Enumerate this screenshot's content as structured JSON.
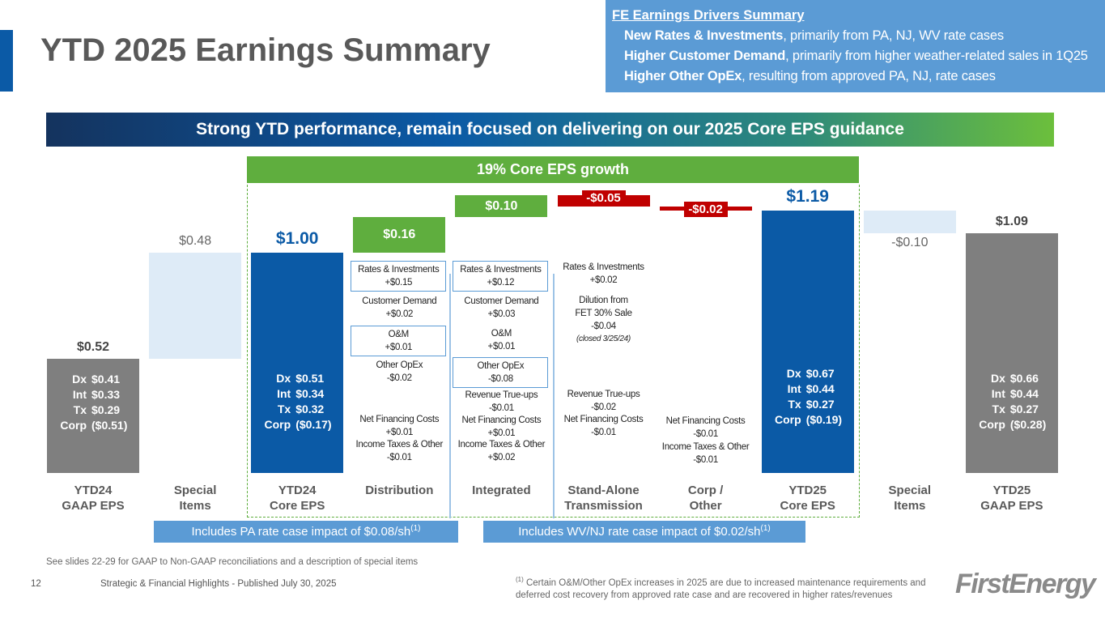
{
  "slide": {
    "title": "YTD 2025 Earnings Summary",
    "banner": "Strong YTD performance, remain focused on delivering on our 2025 Core EPS guidance",
    "growth_label": "19% Core EPS growth",
    "drivers_summary": {
      "title": "FE Earnings Drivers Summary",
      "items": [
        {
          "bold": "New Rates & Investments",
          "text": ", primarily from PA, NJ, WV rate cases"
        },
        {
          "bold": "Higher Customer Demand",
          "text": ", primarily from higher weather-related sales in 1Q25"
        },
        {
          "bold": "Higher Other OpEx",
          "text": ", resulting from approved PA, NJ, rate cases"
        }
      ]
    },
    "callouts": [
      {
        "text": "Includes PA rate case impact of $0.08/sh",
        "note_mark": "(1)"
      },
      {
        "text": "Includes WV/NJ rate case impact of $0.02/sh",
        "note_mark": "(1)"
      }
    ],
    "reconciliation_note": "See slides 22-29 for GAAP to Non-GAAP reconciliations and a description of special items",
    "page_number": "12",
    "footer": "Strategic & Financial Highlights - Published July 30, 2025",
    "footnote": {
      "mark": "(1)",
      "text": "Certain O&M/Other OpEx increases in 2025 are due to increased maintenance requirements and deferred cost recovery from approved rate case and are recovered in higher rates/revenues"
    },
    "logo": "FirstEnergy"
  },
  "chart_data": {
    "type": "waterfall",
    "categories": [
      "YTD24\nGAAP EPS",
      "Special\nItems",
      "YTD24\nCore EPS",
      "Distribution",
      "Integrated",
      "Stand-Alone\nTransmission",
      "Corp /\nOther",
      "YTD25\nCore EPS",
      "Special\nItems",
      "YTD25\nGAAP EPS"
    ],
    "values": [
      0.52,
      0.48,
      1.0,
      0.16,
      0.1,
      -0.05,
      -0.02,
      1.19,
      -0.1,
      1.09
    ],
    "value_labels": [
      "$0.52",
      "$0.48",
      "$1.00",
      "$0.16",
      "$0.10",
      "-$0.05",
      "-$0.02",
      "$1.19",
      "-$0.10",
      "$1.09"
    ],
    "totals": [
      0,
      2,
      7,
      9
    ],
    "colors": [
      "#7f7f7f",
      "#deebf7",
      "#0b5aa6",
      "#5fae3e",
      "#5fae3e",
      "#c00000",
      "#c00000",
      "#0b5aa6",
      "#deebf7",
      "#7f7f7f"
    ],
    "breakdowns": [
      [
        [
          "Dx",
          "$0.41"
        ],
        [
          "Int",
          "$0.33"
        ],
        [
          "Tx",
          "$0.29"
        ],
        [
          "Corp",
          "($0.51)"
        ]
      ],
      null,
      [
        [
          "Dx",
          "$0.51"
        ],
        [
          "Int",
          "$0.34"
        ],
        [
          "Tx",
          "$0.32"
        ],
        [
          "Corp",
          "($0.17)"
        ]
      ],
      null,
      null,
      null,
      null,
      [
        [
          "Dx",
          "$0.67"
        ],
        [
          "Int",
          "$0.44"
        ],
        [
          "Tx",
          "$0.27"
        ],
        [
          "Corp",
          "($0.19)"
        ]
      ],
      null,
      [
        [
          "Dx",
          "$0.66"
        ],
        [
          "Int",
          "$0.44"
        ],
        [
          "Tx",
          "$0.27"
        ],
        [
          "Corp",
          "($0.28)"
        ]
      ]
    ],
    "drivers": [
      [
        {
          "lines": [
            "Rates & Investments",
            "+$0.15"
          ],
          "boxed": true
        },
        {
          "lines": [
            "Customer Demand",
            "+$0.02"
          ]
        },
        {
          "lines": [
            "O&M",
            "+$0.01"
          ],
          "boxed": true
        },
        {
          "lines": [
            "Other OpEx",
            "-$0.02"
          ]
        },
        {
          "lines": [
            "Net Financing Costs",
            "+$0.01"
          ]
        },
        {
          "lines": [
            "Income Taxes & Other",
            "-$0.01"
          ]
        }
      ],
      [
        {
          "lines": [
            "Rates & Investments",
            "+$0.12"
          ],
          "boxed": true
        },
        {
          "lines": [
            "Customer Demand",
            "+$0.03"
          ]
        },
        {
          "lines": [
            "O&M",
            "+$0.01"
          ]
        },
        {
          "lines": [
            "Other OpEx",
            "-$0.08"
          ],
          "boxed": true
        },
        {
          "lines": [
            "Revenue True-ups",
            "-$0.01"
          ]
        },
        {
          "lines": [
            "Net Financing Costs",
            "+$0.01"
          ]
        },
        {
          "lines": [
            "Income Taxes & Other",
            "+$0.02"
          ]
        }
      ],
      [
        {
          "lines": [
            "Rates & Investments",
            "+$0.02"
          ]
        },
        {
          "lines": [
            "Dilution from",
            "FET 30% Sale",
            "-$0.04"
          ],
          "note": "(closed 3/25/24)"
        },
        {
          "lines": [
            "Revenue True-ups",
            "-$0.02"
          ]
        },
        {
          "lines": [
            "Net Financing Costs",
            "-$0.01"
          ]
        }
      ],
      [
        {
          "lines": [
            "Net Financing Costs",
            "-$0.01"
          ]
        },
        {
          "lines": [
            "Income Taxes & Other",
            "-$0.01"
          ]
        }
      ]
    ]
  }
}
